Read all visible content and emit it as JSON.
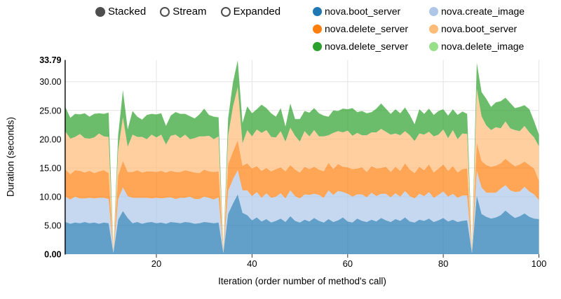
{
  "controls": {
    "options": [
      {
        "label": "Stacked",
        "selected": true
      },
      {
        "label": "Stream",
        "selected": false
      },
      {
        "label": "Expanded",
        "selected": false
      }
    ]
  },
  "legend": {
    "items": [
      {
        "label": "nova.boot_server",
        "color": "#1f77b4"
      },
      {
        "label": "nova.create_image",
        "color": "#aec7e8"
      },
      {
        "label": "nova.delete_server",
        "color": "#ff7f0e"
      },
      {
        "label": "nova.boot_server",
        "color": "#ffbb78"
      },
      {
        "label": "nova.delete_server",
        "color": "#2ca02c"
      },
      {
        "label": "nova.delete_image",
        "color": "#98df8a"
      }
    ]
  },
  "axes": {
    "y_label": "Duration (seconds)",
    "x_label": "Iteration (order number of method's call)"
  },
  "chart_data": {
    "type": "area",
    "stacked": true,
    "title": "",
    "xlabel": "Iteration (order number of method's call)",
    "ylabel": "Duration (seconds)",
    "xlim": [
      1,
      100
    ],
    "ylim": [
      0,
      33.79
    ],
    "grid": true,
    "legend_position": "top-right",
    "fill_opacity": 0.7,
    "colors": {
      "axis": "#000000",
      "gridline": "#e4e4e4",
      "tick": "#333333"
    },
    "x_ticks": [
      20,
      40,
      60,
      80,
      100
    ],
    "y_ticks": [
      {
        "v": 0,
        "label": "0.00",
        "bold": true
      },
      {
        "v": 5,
        "label": "5.00",
        "bold": false
      },
      {
        "v": 10,
        "label": "10.00",
        "bold": false
      },
      {
        "v": 15,
        "label": "15.00",
        "bold": false
      },
      {
        "v": 20,
        "label": "20.00",
        "bold": false
      },
      {
        "v": 25,
        "label": "25.00",
        "bold": false
      },
      {
        "v": 30,
        "label": "30.00",
        "bold": false
      },
      {
        "v": 33.79,
        "label": "33.79",
        "bold": true
      }
    ],
    "x": [
      1,
      2,
      3,
      4,
      5,
      6,
      7,
      8,
      9,
      10,
      11,
      12,
      13,
      14,
      15,
      16,
      17,
      18,
      19,
      20,
      21,
      22,
      23,
      24,
      25,
      26,
      27,
      28,
      29,
      30,
      31,
      32,
      33,
      34,
      35,
      36,
      37,
      38,
      39,
      40,
      41,
      42,
      43,
      44,
      45,
      46,
      47,
      48,
      49,
      50,
      51,
      52,
      53,
      54,
      55,
      56,
      57,
      58,
      59,
      60,
      61,
      62,
      63,
      64,
      65,
      66,
      67,
      68,
      69,
      70,
      71,
      72,
      73,
      74,
      75,
      76,
      77,
      78,
      79,
      80,
      81,
      82,
      83,
      84,
      85,
      86,
      87,
      88,
      89,
      90,
      91,
      92,
      93,
      94,
      95,
      96,
      97,
      98,
      99,
      100
    ],
    "series": [
      {
        "name": "nova.boot_server",
        "color": "#1f77b4",
        "values": [
          5.6,
          5.3,
          5.5,
          5.4,
          5.6,
          5.4,
          5.5,
          5.3,
          5.5,
          5.4,
          0.2,
          6.0,
          7.5,
          6.3,
          5.4,
          5.6,
          5.3,
          5.5,
          5.6,
          5.4,
          5.5,
          5.3,
          5.6,
          5.5,
          5.4,
          5.6,
          5.5,
          5.3,
          5.4,
          5.6,
          5.5,
          5.4,
          5.5,
          0.2,
          7.0,
          8.8,
          10.4,
          7.2,
          6.8,
          5.9,
          6.4,
          5.7,
          6.1,
          5.5,
          5.8,
          6.2,
          5.6,
          6.6,
          5.8,
          5.5,
          6.0,
          5.7,
          6.3,
          5.8,
          5.5,
          6.1,
          5.6,
          5.9,
          6.4,
          5.7,
          5.5,
          6.2,
          5.8,
          5.6,
          6.0,
          5.7,
          6.3,
          5.9,
          5.6,
          6.1,
          5.8,
          6.4,
          5.7,
          5.5,
          6.0,
          5.8,
          6.2,
          5.6,
          5.9,
          6.3,
          5.7,
          6.0,
          5.6,
          5.8,
          5.9,
          0.2,
          10.2,
          7.0,
          6.5,
          6.2,
          6.4,
          6.8,
          7.6,
          6.9,
          6.3,
          6.6,
          7.1,
          6.5,
          6.2,
          6.1
        ]
      },
      {
        "name": "nova.create_image",
        "color": "#aec7e8",
        "values": [
          4.4,
          4.2,
          4.5,
          4.3,
          4.1,
          4.4,
          4.2,
          4.5,
          4.3,
          4.2,
          0.1,
          3.6,
          4.1,
          3.8,
          4.4,
          4.2,
          4.5,
          4.3,
          4.1,
          4.4,
          4.2,
          4.5,
          4.3,
          4.1,
          4.4,
          4.2,
          4.5,
          4.3,
          4.2,
          4.4,
          4.3,
          4.1,
          4.4,
          0.1,
          4.0,
          4.2,
          4.2,
          3.9,
          4.3,
          4.2,
          4.4,
          4.1,
          4.5,
          4.3,
          4.2,
          4.4,
          4.1,
          4.5,
          4.3,
          4.2,
          4.4,
          4.6,
          4.2,
          4.5,
          4.3,
          5.0,
          4.7,
          5.1,
          4.4,
          4.8,
          4.5,
          4.2,
          4.6,
          4.3,
          4.7,
          4.4,
          4.2,
          4.6,
          4.3,
          4.5,
          4.2,
          4.6,
          4.4,
          4.2,
          4.5,
          4.3,
          4.6,
          4.2,
          4.4,
          4.6,
          4.3,
          4.5,
          4.2,
          4.4,
          4.3,
          0.1,
          4.3,
          4.6,
          4.2,
          4.5,
          4.3,
          4.6,
          4.4,
          4.2,
          4.5,
          4.3,
          4.6,
          4.4,
          4.2,
          3.3
        ]
      },
      {
        "name": "nova.delete_server",
        "color": "#ff7f0e",
        "values": [
          4.7,
          4.4,
          4.6,
          4.8,
          4.5,
          4.7,
          4.4,
          4.6,
          4.8,
          4.5,
          0.1,
          4.1,
          4.6,
          4.2,
          4.5,
          4.8,
          4.4,
          4.6,
          4.7,
          4.5,
          4.8,
          4.4,
          4.6,
          4.7,
          4.5,
          4.8,
          4.4,
          4.6,
          4.5,
          4.7,
          4.6,
          4.8,
          4.5,
          0.1,
          4.6,
          4.8,
          5.2,
          4.3,
          4.7,
          4.8,
          4.5,
          4.7,
          4.4,
          4.6,
          4.8,
          4.5,
          4.7,
          4.4,
          4.6,
          4.5,
          4.8,
          4.5,
          4.7,
          4.4,
          4.6,
          4.8,
          4.5,
          4.7,
          4.4,
          4.6,
          4.8,
          4.5,
          4.7,
          4.4,
          4.6,
          4.8,
          4.5,
          4.7,
          4.4,
          4.6,
          4.5,
          4.8,
          4.6,
          4.4,
          4.7,
          4.5,
          4.8,
          4.4,
          4.6,
          4.7,
          4.5,
          4.8,
          4.4,
          4.6,
          4.7,
          0.1,
          4.9,
          4.6,
          4.8,
          4.5,
          4.7,
          4.4,
          4.6,
          4.8,
          4.5,
          4.7,
          4.4,
          4.6,
          4.5,
          3.4
        ]
      },
      {
        "name": "nova.boot_server",
        "color": "#ffbb78",
        "values": [
          6.6,
          6.2,
          5.8,
          6.4,
          6.0,
          5.6,
          6.2,
          6.6,
          5.9,
          6.3,
          0.2,
          4.5,
          7.6,
          4.4,
          6.5,
          5.8,
          6.2,
          5.6,
          6.4,
          6.0,
          6.3,
          4.9,
          6.1,
          6.5,
          5.9,
          6.2,
          5.6,
          6.0,
          6.4,
          5.8,
          6.2,
          5.7,
          6.1,
          0.2,
          5.0,
          7.8,
          9.3,
          3.9,
          5.8,
          5.6,
          6.4,
          6.6,
          6.6,
          6.0,
          5.5,
          6.3,
          5.2,
          6.5,
          5.9,
          5.4,
          6.2,
          5.7,
          6.4,
          5.8,
          6.1,
          4.8,
          6.3,
          5.7,
          6.0,
          6.4,
          5.8,
          6.2,
          5.6,
          6.4,
          5.9,
          6.3,
          6.8,
          6.1,
          6.5,
          5.8,
          6.2,
          5.6,
          6.0,
          5.6,
          5.8,
          6.2,
          5.7,
          6.3,
          5.9,
          6.1,
          5.7,
          6.3,
          5.8,
          6.2,
          6.0,
          0.2,
          9.4,
          7.8,
          6.9,
          6.4,
          6.7,
          6.1,
          6.5,
          6.0,
          6.3,
          5.8,
          6.2,
          5.7,
          5.4,
          6.0
        ]
      },
      {
        "name": "nova.delete_server",
        "color": "#2ca02c",
        "values": [
          4.2,
          3.6,
          4.0,
          3.4,
          4.3,
          3.8,
          4.1,
          3.5,
          3.9,
          4.2,
          0.1,
          2.5,
          4.7,
          3.0,
          4.1,
          3.5,
          3.0,
          4.2,
          3.6,
          4.0,
          3.7,
          3.2,
          3.5,
          3.9,
          4.2,
          3.6,
          4.0,
          3.4,
          3.8,
          4.8,
          3.6,
          3.9,
          3.3,
          0.1,
          3.0,
          4.2,
          4.6,
          3.5,
          4.1,
          4.0,
          3.5,
          4.9,
          3.8,
          4.1,
          3.6,
          4.0,
          2.6,
          4.2,
          2.9,
          3.9,
          3.5,
          4.1,
          3.8,
          4.0,
          3.6,
          3.2,
          3.9,
          3.5,
          4.1,
          3.7,
          4.8,
          3.6,
          4.2,
          3.8,
          3.5,
          4.1,
          4.4,
          4.0,
          3.6,
          4.2,
          3.8,
          4.1,
          3.5,
          2.9,
          4.2,
          3.6,
          4.0,
          3.7,
          4.1,
          3.5,
          3.9,
          3.6,
          4.2,
          3.8,
          3.5,
          0.1,
          4.5,
          4.2,
          4.6,
          4.0,
          4.3,
          4.7,
          4.1,
          4.4,
          3.8,
          4.2,
          3.6,
          4.0,
          2.8,
          2.0
        ]
      },
      {
        "name": "nova.delete_image",
        "color": "#98df8a",
        "values": [
          0.05,
          0.05,
          0.05,
          0.05,
          0.05,
          0.05,
          0.05,
          0.05,
          0.05,
          0.05,
          0,
          0.05,
          0.05,
          0.05,
          0.05,
          0.05,
          0.05,
          0.05,
          0.05,
          0.05,
          0.05,
          0.05,
          0.05,
          0.05,
          0.05,
          0.05,
          0.05,
          0.05,
          0.05,
          0.05,
          0.05,
          0.05,
          0.05,
          0,
          0.05,
          0.05,
          0.09,
          0.05,
          0.05,
          0.05,
          0.05,
          0.05,
          0.05,
          0.05,
          0.05,
          0.05,
          0.05,
          0.05,
          0.05,
          0.05,
          0.05,
          0.05,
          0.05,
          0.05,
          0.05,
          0.05,
          0.05,
          0.05,
          0.05,
          0.05,
          0.05,
          0.05,
          0.05,
          0.05,
          0.05,
          0.05,
          0.05,
          0.05,
          0.05,
          0.05,
          0.05,
          0.05,
          0.05,
          0.05,
          0.05,
          0.05,
          0.05,
          0.05,
          0.05,
          0.05,
          0.05,
          0.05,
          0.05,
          0.05,
          0.05,
          0,
          0.05,
          0.05,
          0.05,
          0.05,
          0.05,
          0.05,
          0.05,
          0.05,
          0.05,
          0.05,
          0.05,
          0.05,
          0.05,
          0.05
        ]
      }
    ]
  }
}
